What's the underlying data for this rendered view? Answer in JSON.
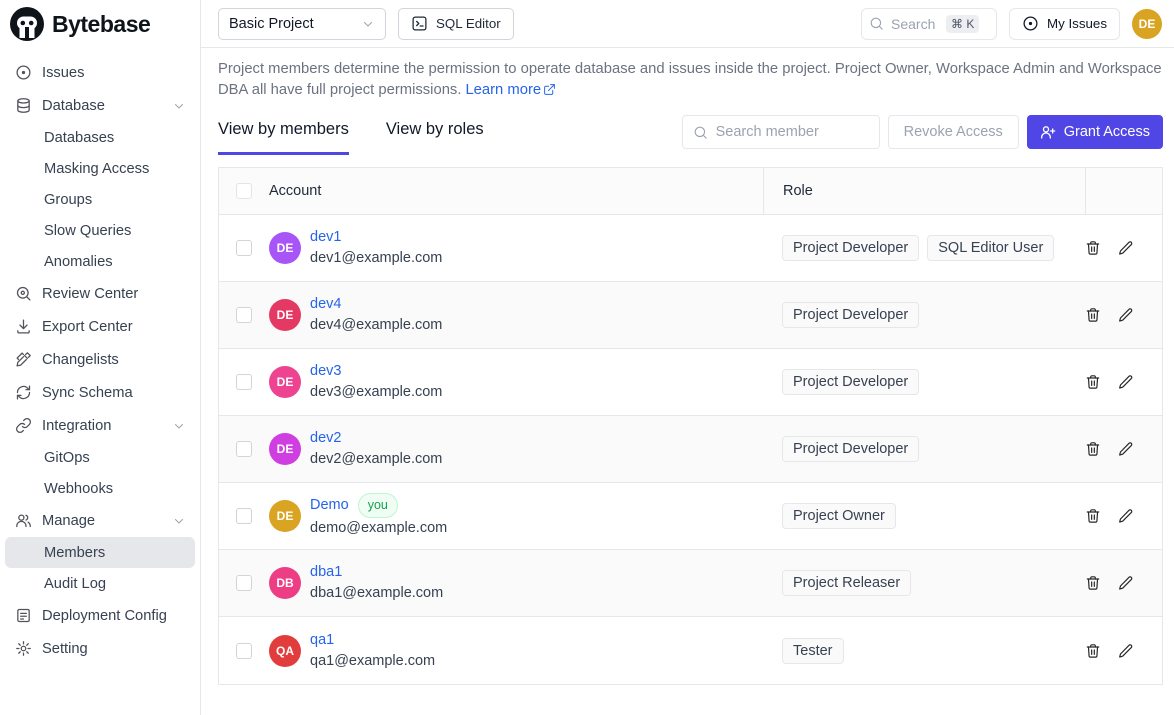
{
  "brand": "Bytebase",
  "topbar": {
    "project_select": "Basic Project",
    "sql_editor_label": "SQL Editor",
    "search": {
      "placeholder": "Search",
      "shortcut": "⌘ K"
    },
    "my_issues_label": "My Issues",
    "avatar": {
      "initials": "DE",
      "color": "#d9a422"
    }
  },
  "sidebar": {
    "items": [
      {
        "icon": "circle-dot-icon",
        "label": "Issues"
      },
      {
        "icon": "database-icon",
        "label": "Database",
        "chevron": true
      },
      {
        "label": "Databases",
        "sub": true
      },
      {
        "label": "Masking Access",
        "sub": true
      },
      {
        "label": "Groups",
        "sub": true
      },
      {
        "label": "Slow Queries",
        "sub": true
      },
      {
        "label": "Anomalies",
        "sub": true
      },
      {
        "icon": "review-center-icon",
        "label": "Review Center"
      },
      {
        "icon": "export-icon",
        "label": "Export Center"
      },
      {
        "icon": "changelist-icon",
        "label": "Changelists"
      },
      {
        "icon": "sync-icon",
        "label": "Sync Schema"
      },
      {
        "icon": "link-icon",
        "label": "Integration",
        "chevron": true
      },
      {
        "label": "GitOps",
        "sub": true
      },
      {
        "label": "Webhooks",
        "sub": true
      },
      {
        "icon": "users-icon",
        "label": "Manage",
        "chevron": true
      },
      {
        "label": "Members",
        "sub": true,
        "active": true
      },
      {
        "label": "Audit Log",
        "sub": true
      },
      {
        "icon": "file-text-icon",
        "label": "Deployment Config"
      },
      {
        "icon": "gear-icon",
        "label": "Setting"
      }
    ]
  },
  "main": {
    "description": {
      "text": "Project members determine the permission to operate database and issues inside the project. Project Owner, Workspace Admin and Workspace DBA all have full project permissions.",
      "link": "Learn more"
    },
    "tabs": [
      {
        "label": "View by members",
        "active": true
      },
      {
        "label": "View by roles",
        "active": false
      }
    ],
    "member_search_placeholder": "Search member",
    "revoke_label": "Revoke Access",
    "grant_label": "Grant Access",
    "table": {
      "columns": {
        "account": "Account",
        "role": "Role"
      },
      "you_label": "you",
      "rows": [
        {
          "name": "dev1",
          "email": "dev1@example.com",
          "initials": "DE",
          "color": "#a855f7",
          "roles": [
            "Project Developer",
            "SQL Editor User"
          ],
          "you": false
        },
        {
          "name": "dev4",
          "email": "dev4@example.com",
          "initials": "DE",
          "color": "#e43963",
          "roles": [
            "Project Developer"
          ],
          "you": false
        },
        {
          "name": "dev3",
          "email": "dev3@example.com",
          "initials": "DE",
          "color": "#ee4390",
          "roles": [
            "Project Developer"
          ],
          "you": false
        },
        {
          "name": "dev2",
          "email": "dev2@example.com",
          "initials": "DE",
          "color": "#cf3ee0",
          "roles": [
            "Project Developer"
          ],
          "you": false
        },
        {
          "name": "Demo",
          "email": "demo@example.com",
          "initials": "DE",
          "color": "#d9a422",
          "roles": [
            "Project Owner"
          ],
          "you": true
        },
        {
          "name": "dba1",
          "email": "dba1@example.com",
          "initials": "DB",
          "color": "#ed3d84",
          "roles": [
            "Project Releaser"
          ],
          "you": false
        },
        {
          "name": "qa1",
          "email": "qa1@example.com",
          "initials": "QA",
          "color": "#e23d3d",
          "roles": [
            "Tester"
          ],
          "you": false
        }
      ]
    }
  }
}
